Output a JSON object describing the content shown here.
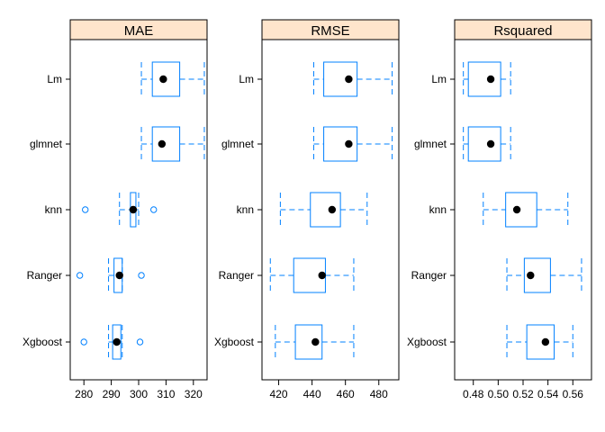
{
  "chart_data": {
    "type": "boxplot",
    "categories": [
      "Lm",
      "glmnet",
      "knn",
      "Ranger",
      "Xgboost"
    ],
    "strip_color": "#ffe5cc",
    "box_color": "#0080ff",
    "median_color": "#000000",
    "panels": [
      {
        "title": "MAE",
        "xlim": [
          275,
          325
        ],
        "ticks": [
          280,
          290,
          300,
          310,
          320
        ],
        "tick_labels": [
          "280",
          "290",
          "300",
          "310",
          "320"
        ],
        "boxes": [
          {
            "category": "Lm",
            "whisker_low": 301,
            "q1": 305,
            "median": 309,
            "q3": 315,
            "whisker_high": 324,
            "outliers": []
          },
          {
            "category": "glmnet",
            "whisker_low": 301,
            "q1": 305,
            "median": 308.5,
            "q3": 315,
            "whisker_high": 324,
            "outliers": []
          },
          {
            "category": "knn",
            "whisker_low": 293,
            "q1": 297,
            "median": 298,
            "q3": 299,
            "whisker_high": 300,
            "outliers": [
              280.5,
              305.5
            ]
          },
          {
            "category": "Ranger",
            "whisker_low": 289,
            "q1": 291,
            "median": 293,
            "q3": 294,
            "whisker_high": 294,
            "outliers": [
              278.5,
              301
            ]
          },
          {
            "category": "Xgboost",
            "whisker_low": 289,
            "q1": 290.5,
            "median": 292,
            "q3": 293.5,
            "whisker_high": 294,
            "outliers": [
              280,
              300.5
            ]
          }
        ]
      },
      {
        "title": "RMSE",
        "xlim": [
          410,
          492
        ],
        "ticks": [
          420,
          440,
          460,
          480
        ],
        "tick_labels": [
          "420",
          "440",
          "460",
          "480"
        ],
        "boxes": [
          {
            "category": "Lm",
            "whisker_low": 441,
            "q1": 447,
            "median": 462,
            "q3": 467,
            "whisker_high": 488,
            "outliers": []
          },
          {
            "category": "glmnet",
            "whisker_low": 441,
            "q1": 447,
            "median": 462,
            "q3": 467,
            "whisker_high": 488,
            "outliers": []
          },
          {
            "category": "knn",
            "whisker_low": 421,
            "q1": 439,
            "median": 452,
            "q3": 457,
            "whisker_high": 473,
            "outliers": []
          },
          {
            "category": "Ranger",
            "whisker_low": 415,
            "q1": 429,
            "median": 446,
            "q3": 448,
            "whisker_high": 465,
            "outliers": []
          },
          {
            "category": "Xgboost",
            "whisker_low": 418,
            "q1": 430,
            "median": 442,
            "q3": 446,
            "whisker_high": 465,
            "outliers": []
          }
        ]
      },
      {
        "title": "Rsquared",
        "xlim": [
          0.465,
          0.575
        ],
        "ticks": [
          0.48,
          0.5,
          0.52,
          0.54,
          0.56
        ],
        "tick_labels": [
          "0.48",
          "0.50",
          "0.52",
          "0.54",
          "0.56"
        ],
        "boxes": [
          {
            "category": "Lm",
            "whisker_low": 0.472,
            "q1": 0.476,
            "median": 0.494,
            "q3": 0.502,
            "whisker_high": 0.51,
            "outliers": []
          },
          {
            "category": "glmnet",
            "whisker_low": 0.472,
            "q1": 0.476,
            "median": 0.494,
            "q3": 0.502,
            "whisker_high": 0.51,
            "outliers": []
          },
          {
            "category": "knn",
            "whisker_low": 0.488,
            "q1": 0.506,
            "median": 0.515,
            "q3": 0.531,
            "whisker_high": 0.556,
            "outliers": []
          },
          {
            "category": "Ranger",
            "whisker_low": 0.507,
            "q1": 0.521,
            "median": 0.526,
            "q3": 0.542,
            "whisker_high": 0.567,
            "outliers": []
          },
          {
            "category": "Xgboost",
            "whisker_low": 0.507,
            "q1": 0.523,
            "median": 0.538,
            "q3": 0.545,
            "whisker_high": 0.56,
            "outliers": []
          }
        ]
      }
    ]
  }
}
